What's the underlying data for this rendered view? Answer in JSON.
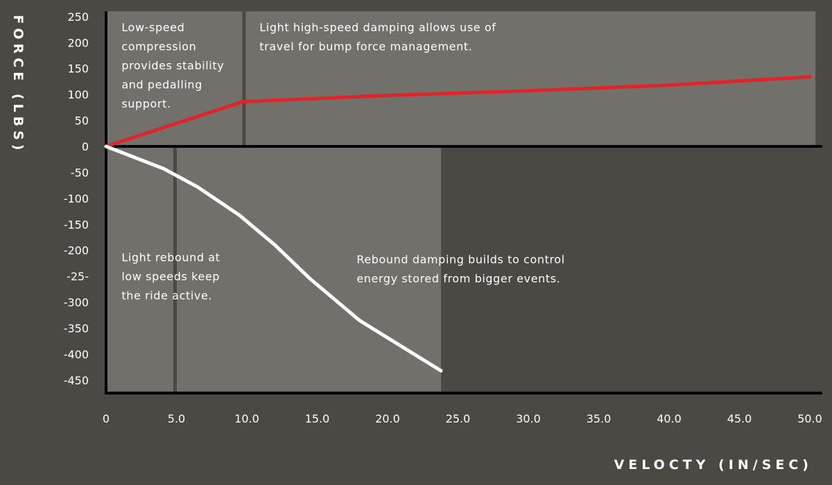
{
  "chart_data": {
    "type": "line",
    "xlabel": "VELOCTY (IN/SEC)",
    "ylabel": "FORCE (LBS)",
    "xlim": [
      0,
      50
    ],
    "ylim": [
      -475,
      260
    ],
    "x_ticks": [
      {
        "value": 0,
        "label": "0"
      },
      {
        "value": 5,
        "label": "5.0"
      },
      {
        "value": 10,
        "label": "10.0"
      },
      {
        "value": 15,
        "label": "15.0"
      },
      {
        "value": 20,
        "label": "20.0"
      },
      {
        "value": 25,
        "label": "25.0"
      },
      {
        "value": 30,
        "label": "30.0"
      },
      {
        "value": 35,
        "label": "35.0"
      },
      {
        "value": 40,
        "label": "40.0"
      },
      {
        "value": 45,
        "label": "45.0"
      },
      {
        "value": 50,
        "label": "50.0"
      }
    ],
    "y_ticks": [
      {
        "value": 250,
        "label": "250"
      },
      {
        "value": 200,
        "label": "200"
      },
      {
        "value": 150,
        "label": "150"
      },
      {
        "value": 100,
        "label": "100"
      },
      {
        "value": 50,
        "label": "50"
      },
      {
        "value": 0,
        "label": "0"
      },
      {
        "value": -50,
        "label": "-50"
      },
      {
        "value": -100,
        "label": "-100"
      },
      {
        "value": -150,
        "label": "-150"
      },
      {
        "value": -200,
        "label": "-200"
      },
      {
        "value": -250,
        "label": "-25-"
      },
      {
        "value": -300,
        "label": "-300"
      },
      {
        "value": -350,
        "label": "-350"
      },
      {
        "value": -400,
        "label": "-400"
      },
      {
        "value": -450,
        "label": "-450"
      }
    ],
    "regions": [
      {
        "x0": 0,
        "x1": 10,
        "y0": 0,
        "y1": 260
      },
      {
        "x0": 10,
        "x1": 50.4,
        "y0": 0,
        "y1": 260
      },
      {
        "x0": 0,
        "x1": 5,
        "y0": -475,
        "y1": 0
      },
      {
        "x0": 5,
        "x1": 23.8,
        "y0": -475,
        "y1": 0
      }
    ],
    "dividers": [
      {
        "x": 9.8,
        "y0": 0,
        "y1": 260
      },
      {
        "x": 4.9,
        "y0": -475,
        "y1": 0
      }
    ],
    "series": [
      {
        "color": "#e0252a",
        "points": [
          [
            0,
            0
          ],
          [
            9.7,
            86
          ],
          [
            20,
            98
          ],
          [
            30,
            107
          ],
          [
            40,
            118
          ],
          [
            50,
            134
          ]
        ]
      },
      {
        "color": "#ffffff",
        "points": [
          [
            0,
            0
          ],
          [
            4.1,
            -43
          ],
          [
            6.5,
            -78
          ],
          [
            9.5,
            -133
          ],
          [
            12,
            -190
          ],
          [
            14.5,
            -255
          ],
          [
            18,
            -335
          ],
          [
            23.8,
            -432
          ]
        ]
      }
    ],
    "annotations": [
      {
        "lines": [
          "Low-speed",
          "compression",
          "provides stability",
          "and pedalling",
          "support."
        ],
        "x": 1.1,
        "y": 222
      },
      {
        "lines": [
          "Light high-speed damping allows use of",
          "travel for bump force management."
        ],
        "x": 10.9,
        "y": 222
      },
      {
        "lines": [
          "Light rebound at",
          "low speeds keep",
          "the ride active."
        ],
        "x": 1.1,
        "y": -221
      },
      {
        "lines": [
          "Rebound damping builds to control",
          "energy stored from bigger events."
        ],
        "x": 17.8,
        "y": -225
      }
    ]
  },
  "colors": {
    "background": "#4b4944",
    "panel": "#71706a",
    "divider": "#4b4944",
    "axis": "#000000",
    "text": "#ffffff"
  }
}
